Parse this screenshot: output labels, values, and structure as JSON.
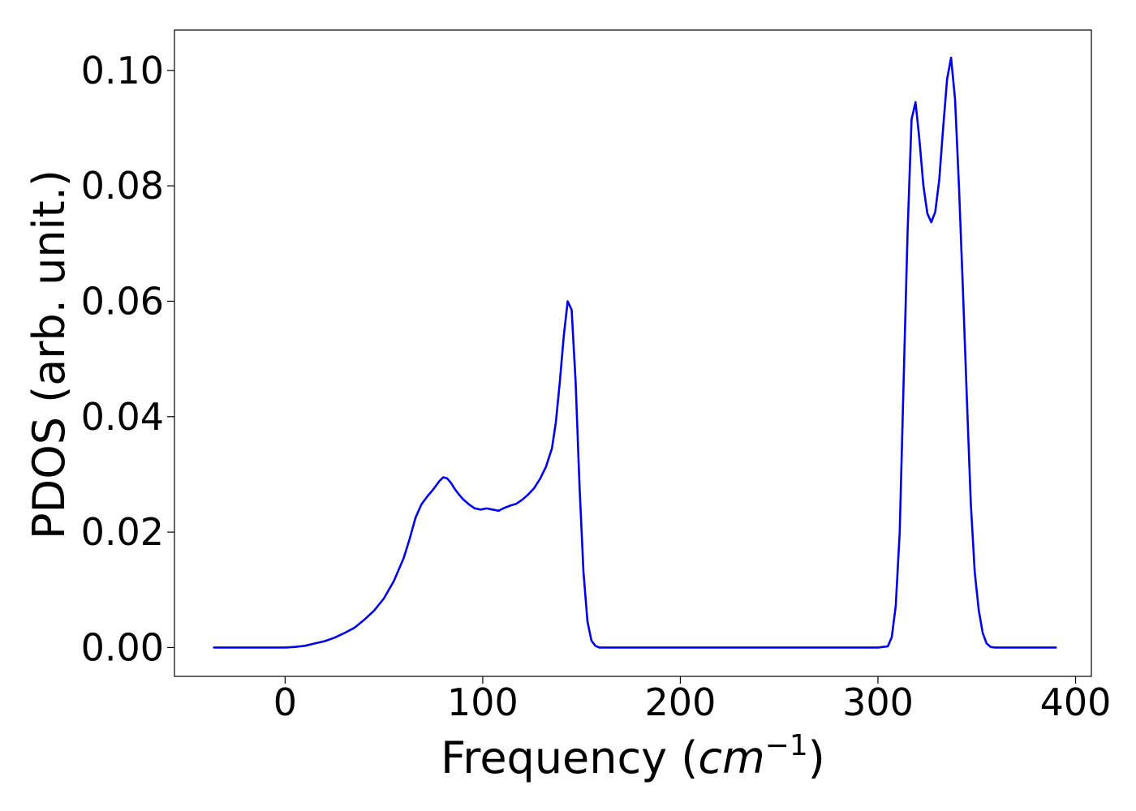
{
  "chart_data": {
    "type": "line",
    "title": "",
    "xlabel_main": "Frequency (",
    "xlabel_unit": "cm",
    "xlabel_sup": "−1",
    "xlabel_end": ")",
    "ylabel": "PDOS (arb. unit.)",
    "xlim": [
      -56,
      408
    ],
    "ylim": [
      -0.005,
      0.107
    ],
    "x_ticks": [
      0,
      100,
      200,
      300,
      400
    ],
    "x_tick_labels": [
      "0",
      "100",
      "200",
      "300",
      "400"
    ],
    "y_ticks": [
      0.0,
      0.02,
      0.04,
      0.06,
      0.08,
      0.1
    ],
    "y_tick_labels": [
      "0.00",
      "0.02",
      "0.04",
      "0.06",
      "0.08",
      "0.10"
    ],
    "grid": false,
    "series": [
      {
        "color": "#0000ee",
        "x": [
          -36,
          0,
          5,
          10,
          15,
          20,
          25,
          30,
          35,
          40,
          45,
          50,
          55,
          60,
          63,
          66,
          69,
          72,
          75,
          78,
          80,
          82,
          84,
          86,
          88,
          90,
          93,
          96,
          99,
          102,
          105,
          108,
          111,
          114,
          117,
          120,
          123,
          126,
          129,
          132,
          135,
          137,
          139,
          141,
          143,
          145,
          147,
          149,
          151,
          153,
          155,
          157,
          159,
          162,
          170,
          200,
          250,
          300,
          305,
          307,
          309,
          311,
          313,
          315,
          317,
          319,
          321,
          323,
          325,
          327,
          329,
          331,
          333,
          335,
          337,
          339,
          341,
          343,
          345,
          347,
          349,
          351,
          353,
          355,
          357,
          359,
          361,
          364,
          370,
          390
        ],
        "values": [
          0.0,
          0.0,
          0.0001,
          0.0003,
          0.0007,
          0.0011,
          0.0017,
          0.0025,
          0.0034,
          0.0048,
          0.0064,
          0.0085,
          0.0115,
          0.0155,
          0.0188,
          0.0225,
          0.0248,
          0.0262,
          0.0274,
          0.0288,
          0.0295,
          0.0293,
          0.0285,
          0.0274,
          0.0265,
          0.0257,
          0.0248,
          0.0241,
          0.0239,
          0.0241,
          0.0239,
          0.0237,
          0.0242,
          0.0246,
          0.0249,
          0.0256,
          0.0265,
          0.0276,
          0.0292,
          0.0313,
          0.0345,
          0.039,
          0.046,
          0.054,
          0.06,
          0.0585,
          0.046,
          0.028,
          0.013,
          0.0045,
          0.0012,
          0.0003,
          0.0,
          0.0,
          0.0,
          0.0,
          0.0,
          0.0,
          0.0002,
          0.0018,
          0.0072,
          0.02,
          0.046,
          0.072,
          0.0915,
          0.0945,
          0.088,
          0.08,
          0.0752,
          0.0737,
          0.0755,
          0.081,
          0.09,
          0.0985,
          0.1022,
          0.095,
          0.08,
          0.062,
          0.043,
          0.025,
          0.013,
          0.0065,
          0.0025,
          0.0007,
          0.0001,
          0.0,
          0.0,
          0.0,
          0.0,
          0.0
        ]
      }
    ]
  }
}
